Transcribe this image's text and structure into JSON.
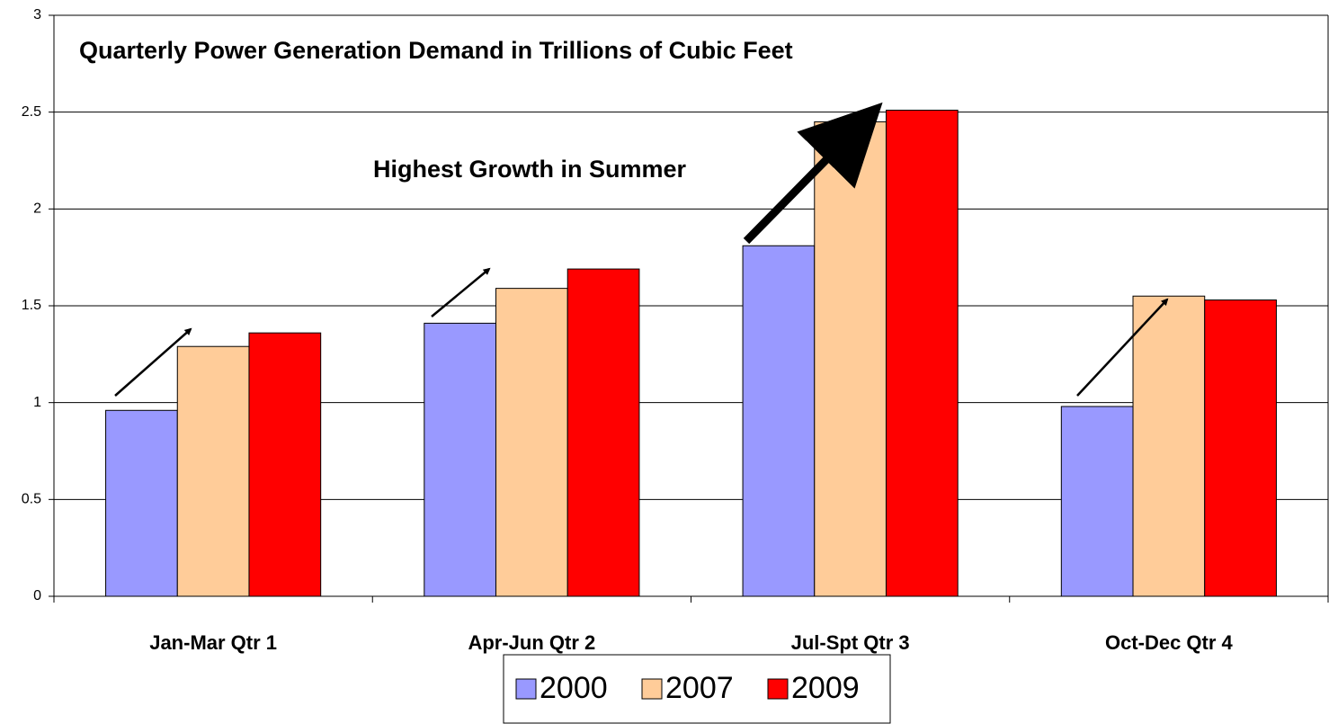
{
  "chart_data": {
    "type": "bar",
    "title": "Quarterly Power Generation Demand in Trillions of Cubic Feet",
    "annotations": [
      "Highest Growth in Summer"
    ],
    "categories": [
      "Jan-Mar Qtr 1",
      "Apr-Jun Qtr 2",
      "Jul-Spt Qtr 3",
      "Oct-Dec Qtr 4"
    ],
    "series": [
      {
        "name": "2000",
        "color": "#9999ff",
        "values": [
          0.96,
          1.41,
          1.81,
          0.98
        ]
      },
      {
        "name": "2007",
        "color": "#ffcc99",
        "values": [
          1.29,
          1.59,
          2.45,
          1.55
        ]
      },
      {
        "name": "2009",
        "color": "#ff0000",
        "values": [
          1.36,
          1.69,
          2.51,
          1.53
        ]
      }
    ],
    "ylim": [
      0,
      3
    ],
    "yticks": [
      0,
      0.5,
      1,
      1.5,
      2,
      2.5,
      3
    ],
    "grid": true,
    "legend": "bottom"
  }
}
